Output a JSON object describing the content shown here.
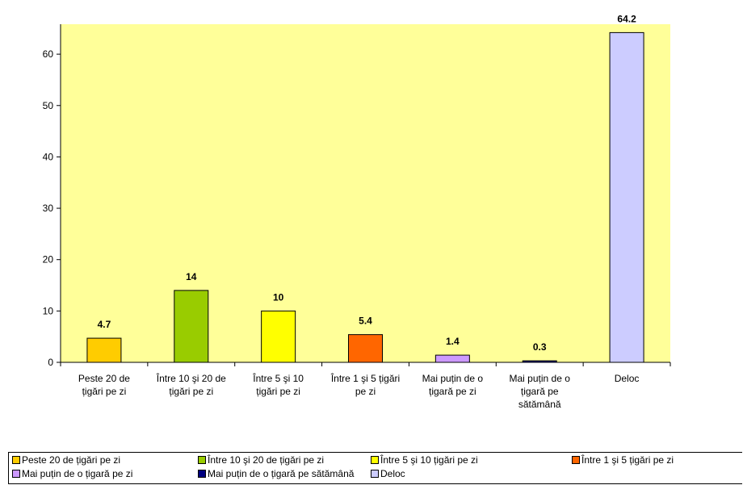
{
  "chart_data": {
    "type": "bar",
    "title": "",
    "xlabel": "",
    "ylabel": "",
    "ylim": [
      0,
      65
    ],
    "yticks": [
      0,
      10,
      20,
      30,
      40,
      50,
      60
    ],
    "grid": false,
    "legend_position": "bottom",
    "plot_background": "#FFFF99",
    "categories": [
      [
        "Peste 20 de",
        "țigări pe zi"
      ],
      [
        "Între 10 şi 20 de",
        "țigări pe zi"
      ],
      [
        "Între 5 şi 10",
        "țigări pe zi"
      ],
      [
        "Între 1 şi 5 țigări",
        "pe zi"
      ],
      [
        "Mai puțin de o",
        "țigară pe zi"
      ],
      [
        "Mai puțin de o",
        "țigară pe",
        "sătămână"
      ],
      [
        "Deloc"
      ]
    ],
    "values": [
      4.7,
      14,
      10,
      5.4,
      1.4,
      0.3,
      64.2
    ],
    "data_labels": [
      "4.7",
      "14",
      "10",
      "5.4",
      "1.4",
      "0.3",
      "64.2"
    ],
    "colors": [
      "#FFCC00",
      "#99CC00",
      "#FFFF00",
      "#FF6600",
      "#CC99FF",
      "#000080",
      "#CCCCFF"
    ],
    "legend": [
      "Peste 20 de țigări pe zi",
      "Între 10 şi 20 de țigări pe zi",
      "Între 5 şi 10 țigări pe zi",
      "Între 1 şi 5 țigări pe zi",
      "Mai puțin de o țigară pe zi",
      "Mai puțin de o țigară pe sătămână",
      "Deloc"
    ]
  }
}
